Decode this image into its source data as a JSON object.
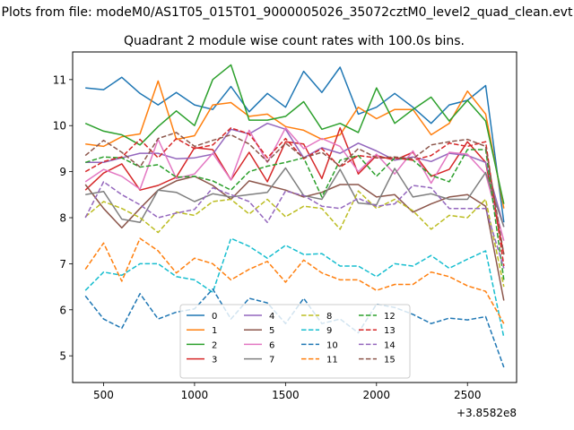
{
  "chart_data": {
    "type": "line",
    "suptitle": "Plots from file: modeM0/AS1T05_015T01_9000005026_35072cztM0_level2_quad_clean.evt",
    "title": "Quadrant 2 module wise count rates with 100.0s bins.",
    "xlabel": "",
    "ylabel": "",
    "x_offset_label": "+3.8582e8",
    "xlim": [
      330,
      2770
    ],
    "ylim": [
      4.42,
      11.6
    ],
    "xticks": [
      500,
      1000,
      1500,
      2000,
      2500
    ],
    "yticks": [
      5,
      6,
      7,
      8,
      9,
      10,
      11
    ],
    "x": [
      400,
      500,
      600,
      700,
      800,
      900,
      1000,
      1100,
      1200,
      1300,
      1400,
      1500,
      1600,
      1700,
      1800,
      1900,
      2000,
      2100,
      2200,
      2300,
      2400,
      2500,
      2600,
      2700
    ],
    "series": [
      {
        "name": "0",
        "color": "#1f77b4",
        "dash": "solid",
        "values": [
          10.82,
          10.78,
          11.05,
          10.7,
          10.45,
          10.72,
          10.45,
          10.35,
          10.85,
          10.3,
          10.7,
          10.4,
          11.18,
          10.72,
          11.27,
          10.25,
          10.4,
          10.7,
          10.4,
          10.05,
          10.45,
          10.55,
          10.87,
          7.9
        ]
      },
      {
        "name": "1",
        "color": "#ff7f0e",
        "dash": "solid",
        "values": [
          9.6,
          9.55,
          9.76,
          9.82,
          10.97,
          9.7,
          9.78,
          10.45,
          10.5,
          10.2,
          10.25,
          9.98,
          9.9,
          9.7,
          9.8,
          10.4,
          10.15,
          10.35,
          10.35,
          9.8,
          10.05,
          10.75,
          10.25,
          8.2
        ]
      },
      {
        "name": "2",
        "color": "#2ca02c",
        "dash": "solid",
        "values": [
          10.05,
          9.88,
          9.8,
          9.58,
          9.98,
          10.32,
          10.0,
          11.0,
          11.32,
          10.12,
          10.12,
          10.2,
          10.52,
          9.92,
          10.05,
          9.85,
          10.82,
          10.05,
          10.35,
          10.62,
          10.1,
          10.55,
          10.1,
          8.3
        ]
      },
      {
        "name": "3",
        "color": "#d62728",
        "dash": "solid",
        "values": [
          8.6,
          8.97,
          9.17,
          8.6,
          8.7,
          8.88,
          9.52,
          9.48,
          8.82,
          9.42,
          8.78,
          9.65,
          9.6,
          8.85,
          9.95,
          8.95,
          9.35,
          9.25,
          9.42,
          8.9,
          9.05,
          9.65,
          9.2,
          7.2
        ]
      },
      {
        "name": "4",
        "color": "#9467bd",
        "dash": "solid",
        "values": [
          9.2,
          9.2,
          9.3,
          9.4,
          9.4,
          9.28,
          9.3,
          9.38,
          9.92,
          9.82,
          10.05,
          9.92,
          9.3,
          9.52,
          9.4,
          9.62,
          9.45,
          9.25,
          9.32,
          9.22,
          9.4,
          9.35,
          9.2,
          7.8
        ]
      },
      {
        "name": "5",
        "color": "#8c564b",
        "dash": "solid",
        "values": [
          8.72,
          8.2,
          7.78,
          8.2,
          8.6,
          8.8,
          8.9,
          8.7,
          8.4,
          8.8,
          8.7,
          8.6,
          8.45,
          8.55,
          8.72,
          8.72,
          8.45,
          8.5,
          8.12,
          8.3,
          8.45,
          8.5,
          8.25,
          6.2
        ]
      },
      {
        "name": "6",
        "color": "#e377c2",
        "dash": "solid",
        "values": [
          8.78,
          9.05,
          8.9,
          8.62,
          9.7,
          8.85,
          8.95,
          9.4,
          8.82,
          9.9,
          9.2,
          9.95,
          9.5,
          9.72,
          9.55,
          9.0,
          9.38,
          8.95,
          9.45,
          8.75,
          9.42,
          9.38,
          8.95,
          7.5
        ]
      },
      {
        "name": "7",
        "color": "#7f7f7f",
        "dash": "solid",
        "values": [
          8.5,
          8.57,
          7.97,
          7.9,
          8.6,
          8.55,
          8.35,
          8.52,
          8.45,
          8.5,
          8.55,
          9.08,
          8.48,
          8.4,
          9.05,
          8.32,
          8.28,
          9.07,
          8.45,
          8.52,
          8.4,
          8.4,
          8.98,
          7.8
        ]
      },
      {
        "name": "8",
        "color": "#bcbd22",
        "dash": "dashed",
        "values": [
          8.02,
          8.35,
          8.2,
          8.0,
          7.68,
          8.12,
          8.05,
          8.35,
          8.4,
          8.08,
          8.4,
          8.02,
          8.25,
          8.2,
          7.75,
          8.58,
          8.2,
          8.4,
          8.15,
          7.75,
          8.05,
          8.0,
          8.4,
          6.5
        ]
      },
      {
        "name": "9",
        "color": "#17becf",
        "dash": "dashed",
        "values": [
          6.42,
          6.82,
          6.75,
          7.0,
          7.0,
          6.72,
          6.65,
          6.38,
          7.55,
          7.38,
          7.12,
          7.4,
          7.2,
          7.22,
          6.95,
          6.95,
          6.72,
          7.0,
          6.95,
          7.18,
          6.9,
          7.1,
          7.28,
          5.4
        ]
      },
      {
        "name": "10",
        "color": "#1f77b4",
        "dash": "dashed",
        "values": [
          6.3,
          5.8,
          5.6,
          6.35,
          5.8,
          5.95,
          6.02,
          6.45,
          5.8,
          6.25,
          6.15,
          5.7,
          6.25,
          5.7,
          5.8,
          5.5,
          6.12,
          6.05,
          5.9,
          5.7,
          5.82,
          5.78,
          5.85,
          4.75
        ]
      },
      {
        "name": "11",
        "color": "#ff7f0e",
        "dash": "dashed",
        "values": [
          6.88,
          7.45,
          6.62,
          7.55,
          7.28,
          6.8,
          7.12,
          7.0,
          6.65,
          6.88,
          7.05,
          6.6,
          7.08,
          6.8,
          6.65,
          6.65,
          6.42,
          6.55,
          6.55,
          6.82,
          6.72,
          6.52,
          6.4,
          5.7
        ]
      },
      {
        "name": "12",
        "color": "#2ca02c",
        "dash": "dashed",
        "values": [
          9.2,
          9.32,
          9.3,
          9.1,
          9.15,
          8.88,
          8.9,
          8.8,
          8.6,
          9.0,
          9.12,
          9.2,
          9.3,
          8.45,
          9.25,
          9.35,
          8.9,
          9.3,
          9.25,
          8.92,
          8.78,
          9.48,
          9.48,
          6.65
        ]
      },
      {
        "name": "13",
        "color": "#d62728",
        "dash": "dashed",
        "values": [
          9.0,
          9.22,
          9.32,
          9.7,
          9.3,
          9.72,
          9.5,
          9.58,
          9.95,
          9.82,
          9.3,
          9.72,
          9.28,
          9.5,
          9.1,
          9.35,
          9.3,
          9.3,
          9.25,
          9.35,
          9.62,
          9.55,
          9.65,
          6.95
        ]
      },
      {
        "name": "14",
        "color": "#9467bd",
        "dash": "dashed",
        "values": [
          8.0,
          8.78,
          8.5,
          8.28,
          8.0,
          8.1,
          8.18,
          8.65,
          8.5,
          8.35,
          7.9,
          8.58,
          8.48,
          8.25,
          8.2,
          8.42,
          8.25,
          8.3,
          8.7,
          8.65,
          8.2,
          8.2,
          8.2,
          6.9
        ]
      },
      {
        "name": "15",
        "color": "#8c564b",
        "dash": "dashed",
        "values": [
          9.35,
          9.68,
          9.42,
          9.1,
          9.72,
          9.85,
          9.55,
          9.68,
          9.8,
          9.6,
          9.22,
          9.62,
          9.3,
          9.42,
          9.12,
          9.5,
          9.3,
          9.32,
          9.28,
          9.58,
          9.65,
          9.7,
          9.55,
          7.2
        ]
      }
    ],
    "legend": {
      "position": "lower-center",
      "columns": 4
    },
    "grid": false
  }
}
